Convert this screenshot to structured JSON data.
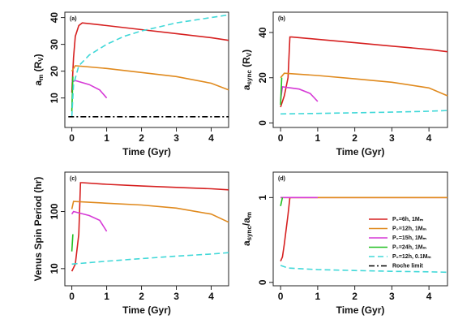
{
  "chart_data": [
    {
      "type": "line",
      "label": "(a)",
      "xlabel": "Time (Gyr)",
      "ylabel": [
        "a",
        "m",
        " (R",
        "V",
        ")"
      ],
      "xlim": [
        -0.2,
        4.5
      ],
      "xticks": [
        0,
        1,
        2,
        3,
        4
      ],
      "ylim": [
        -1,
        42
      ],
      "yticks": [
        10,
        20,
        30,
        40
      ],
      "series": [
        {
          "color": "#d62020",
          "dash": "solid",
          "x": [
            0,
            0.05,
            0.1,
            0.2,
            0.3,
            1,
            2,
            3,
            4,
            4.5
          ],
          "values": [
            12,
            25,
            33,
            37,
            38,
            37,
            35.5,
            34,
            32.5,
            31.5
          ]
        },
        {
          "color": "#e08a1e",
          "dash": "solid",
          "x": [
            0,
            0.1,
            1,
            2,
            3,
            4,
            4.5
          ],
          "values": [
            20,
            22,
            21,
            19.5,
            18,
            15.5,
            13
          ]
        },
        {
          "color": "#d63ad6",
          "dash": "solid",
          "x": [
            0,
            0.1,
            0.5,
            0.8,
            1
          ],
          "values": [
            16,
            16.5,
            15,
            13,
            10
          ]
        },
        {
          "color": "#22c022",
          "dash": "solid",
          "x": [
            0,
            0.03
          ],
          "values": [
            5,
            18
          ]
        },
        {
          "color": "#40d8d8",
          "dash": "dashed",
          "x": [
            0,
            0.05,
            0.2,
            0.5,
            1,
            1.5,
            2,
            2.5,
            3,
            3.5,
            4,
            4.5
          ],
          "values": [
            3,
            15,
            22,
            26,
            30,
            33,
            35,
            36.5,
            38,
            39,
            40,
            41
          ]
        },
        {
          "color": "#000000",
          "dash": "dashdot",
          "x": [
            -0.1,
            4.5
          ],
          "values": [
            3,
            3
          ]
        }
      ]
    },
    {
      "type": "line",
      "label": "(b)",
      "xlabel": "Time (Gyr)",
      "ylabel": [
        "a",
        "sync",
        " (R",
        "V",
        ")"
      ],
      "xlim": [
        -0.2,
        4.5
      ],
      "xticks": [
        0,
        1,
        2,
        3,
        4
      ],
      "ylim": [
        -2,
        49
      ],
      "yticks": [
        0,
        20,
        40
      ],
      "series": [
        {
          "color": "#d62020",
          "dash": "solid",
          "x": [
            0,
            0.1,
            0.2,
            0.25,
            0.3,
            1,
            2,
            3,
            4,
            4.5
          ],
          "values": [
            7,
            12,
            20,
            38,
            38,
            37,
            35.5,
            34,
            32.5,
            31.5
          ]
        },
        {
          "color": "#e08a1e",
          "dash": "solid",
          "x": [
            0,
            0.1,
            1,
            2,
            3,
            4,
            4.5
          ],
          "values": [
            20,
            22,
            21,
            19.5,
            18,
            15.5,
            12
          ]
        },
        {
          "color": "#d63ad6",
          "dash": "solid",
          "x": [
            0,
            0.05,
            0.5,
            0.8,
            1
          ],
          "values": [
            10,
            16,
            15,
            13,
            9.5
          ]
        },
        {
          "color": "#22c022",
          "dash": "solid",
          "x": [
            0,
            0.03
          ],
          "values": [
            8,
            20
          ]
        },
        {
          "color": "#40d8d8",
          "dash": "dashed",
          "x": [
            0,
            1,
            2,
            3,
            4,
            4.5
          ],
          "values": [
            4,
            4.2,
            4.5,
            4.8,
            5.2,
            5.5
          ]
        }
      ]
    },
    {
      "type": "line",
      "label": "(c)",
      "xlabel": "Time (Gyr)",
      "ylabel": [
        "Venus Spin Period (hr)"
      ],
      "log_y": true,
      "xlim": [
        -0.2,
        4.5
      ],
      "xticks": [
        0,
        1,
        2,
        3,
        4
      ],
      "ylim": [
        5,
        490
      ],
      "yticks": [
        10,
        100
      ],
      "series": [
        {
          "color": "#d62020",
          "dash": "solid",
          "x": [
            0,
            0.1,
            0.2,
            0.25,
            0.3,
            1,
            2,
            3,
            4,
            4.5
          ],
          "values": [
            9,
            12,
            40,
            320,
            320,
            300,
            280,
            265,
            250,
            240
          ]
        },
        {
          "color": "#e08a1e",
          "dash": "solid",
          "x": [
            0,
            0.05,
            1,
            2,
            3,
            4,
            4.5
          ],
          "values": [
            110,
            150,
            140,
            130,
            115,
            90,
            65
          ]
        },
        {
          "color": "#d63ad6",
          "dash": "solid",
          "x": [
            0,
            0.05,
            0.5,
            0.8,
            1
          ],
          "values": [
            90,
            100,
            85,
            70,
            45
          ]
        },
        {
          "color": "#22c022",
          "dash": "solid",
          "x": [
            0,
            0.03
          ],
          "values": [
            20,
            40
          ]
        },
        {
          "color": "#40d8d8",
          "dash": "dashed",
          "x": [
            0,
            1,
            2,
            3,
            4,
            4.5
          ],
          "values": [
            12,
            13.5,
            15,
            16.5,
            18,
            19
          ]
        }
      ]
    },
    {
      "type": "line",
      "label": "(d)",
      "xlabel": "Time (Gyr)",
      "ylabel": [
        "a",
        "sync",
        "/a",
        "m"
      ],
      "xlim": [
        -0.2,
        4.5
      ],
      "xticks": [
        0,
        1,
        2,
        3,
        4
      ],
      "ylim": [
        -0.04,
        1.3
      ],
      "yticks": [
        0,
        1
      ],
      "series": [
        {
          "color": "#d62020",
          "dash": "solid",
          "x": [
            0,
            0.05,
            0.1,
            0.2,
            0.25,
            4.5
          ],
          "values": [
            0.25,
            0.3,
            0.45,
            0.8,
            1,
            1
          ]
        },
        {
          "color": "#e08a1e",
          "dash": "solid",
          "x": [
            0,
            4.5
          ],
          "values": [
            1,
            1
          ]
        },
        {
          "color": "#d63ad6",
          "dash": "solid",
          "x": [
            0,
            1
          ],
          "values": [
            1,
            1
          ]
        },
        {
          "color": "#22c022",
          "dash": "solid",
          "x": [
            0,
            0.05
          ],
          "values": [
            0.9,
            1
          ]
        },
        {
          "color": "#40d8d8",
          "dash": "dashed",
          "x": [
            0,
            0.2,
            1,
            2,
            3,
            4,
            4.5
          ],
          "values": [
            0.2,
            0.17,
            0.15,
            0.14,
            0.13,
            0.125,
            0.12
          ]
        }
      ],
      "legend": [
        {
          "name": "P₀=6h, 1Mₘ",
          "color": "#d62020",
          "dash": "solid"
        },
        {
          "name": "P₀=12h, 1Mₘ",
          "color": "#e08a1e",
          "dash": "solid"
        },
        {
          "name": "P₀=15h, 1Mₘ",
          "color": "#d63ad6",
          "dash": "solid"
        },
        {
          "name": "P₀=24h, 1Mₘ",
          "color": "#22c022",
          "dash": "solid"
        },
        {
          "name": "P₀=12h, 0.1Mₘ",
          "color": "#40d8d8",
          "dash": "dashed"
        },
        {
          "name": "Roche limit",
          "color": "#000000",
          "dash": "dashdot"
        }
      ]
    }
  ]
}
